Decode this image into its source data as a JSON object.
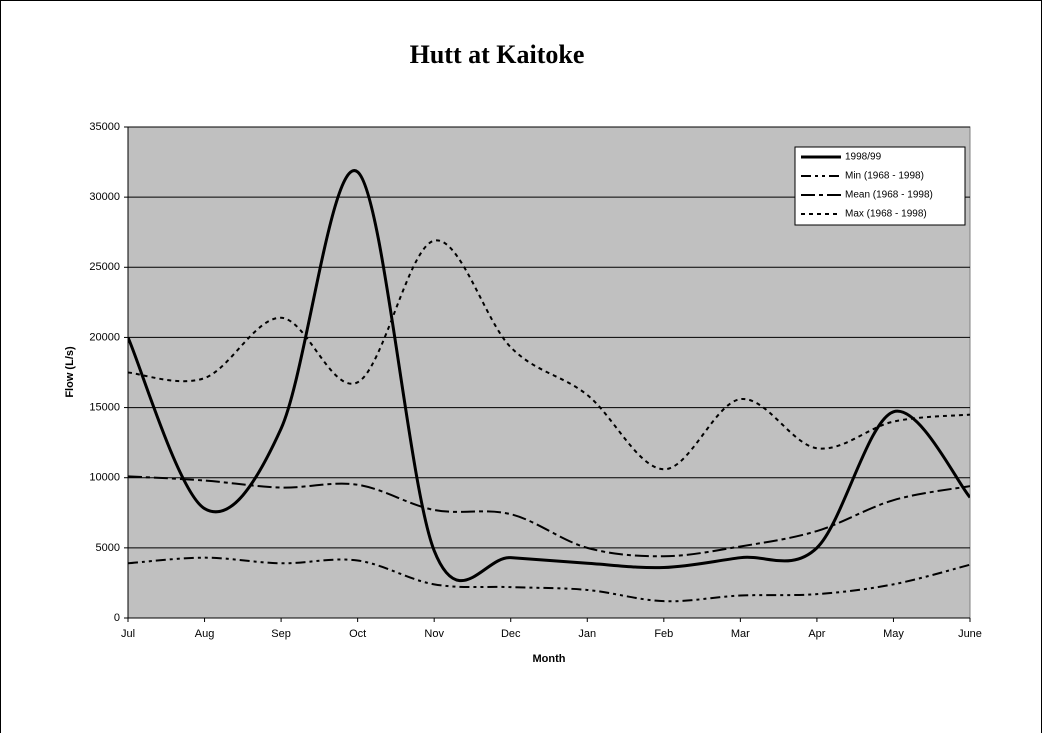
{
  "chart_data": {
    "type": "line",
    "title": "Hutt at Kaitoke",
    "xlabel": "Month",
    "ylabel": "Flow (L/s)",
    "categories": [
      "Jul",
      "Aug",
      "Sep",
      "Oct",
      "Nov",
      "Dec",
      "Jan",
      "Feb",
      "Mar",
      "Apr",
      "May",
      "June"
    ],
    "series": [
      {
        "name": "1998/99",
        "color": "#000000",
        "style": "solid",
        "values": [
          20000,
          7800,
          13500,
          31800,
          4800,
          4300,
          3900,
          3600,
          4300,
          5000,
          14700,
          8600
        ]
      },
      {
        "name": "Min (1968 - 1998)",
        "color": "#000000",
        "style": "dashdotdot",
        "values": [
          3900,
          4300,
          3900,
          4100,
          2400,
          2200,
          2000,
          1200,
          1600,
          1700,
          2400,
          3800
        ]
      },
      {
        "name": "Mean (1968 - 1998)",
        "color": "#000000",
        "style": "dashdot",
        "values": [
          10100,
          9800,
          9300,
          9500,
          7700,
          7400,
          5000,
          4400,
          5100,
          6200,
          8400,
          9400
        ]
      },
      {
        "name": "Max (1968 - 1998)",
        "color": "#000000",
        "style": "dotted",
        "values": [
          17500,
          17100,
          21400,
          16800,
          26900,
          19300,
          15900,
          10600,
          15600,
          12100,
          14000,
          14500
        ]
      }
    ],
    "ylim": [
      0,
      35000
    ],
    "yticks": [
      0,
      5000,
      10000,
      15000,
      20000,
      25000,
      30000,
      35000
    ],
    "grid": true,
    "legend": "upper right",
    "smooth": true
  }
}
